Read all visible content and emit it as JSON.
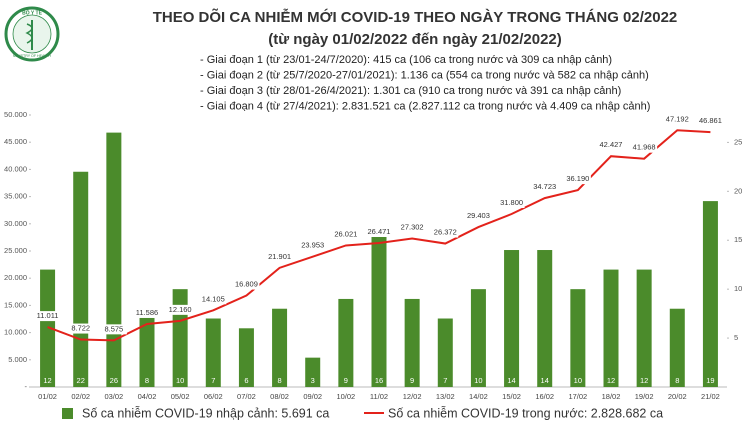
{
  "logo": {
    "name": "BỘ Y TẾ",
    "subtitle": "MINISTRY OF HEALTH"
  },
  "chart_data": {
    "type": "bar",
    "title": "THEO DÕI CA NHIỄM MỚI COVID-19 THEO NGÀY TRONG THÁNG 02/2022",
    "subtitle": "(từ ngày 01/02/2022 đến ngày 21/02/2022)",
    "notes": [
      "- Giai đoạn 1 (từ 23/01-24/7/2020): 415 ca (106 ca trong nước và 309 ca nhập cảnh)",
      "- Giai đoạn 2 (từ 25/7/2020-27/01/2021): 1.136 ca (554 ca trong nước và 582 ca nhập cảnh)",
      "- Giai đoạn 3 (từ 28/01-26/4/2021): 1.301 ca (910 ca trong nước và 391 ca nhập cảnh)",
      "- Giai đoạn 4 (từ 27/4/2021): 2.831.521 ca (2.827.112 ca trong nước và 4.409 ca nhập cảnh)"
    ],
    "categories": [
      "01/02",
      "02/02",
      "03/02",
      "04/02",
      "05/02",
      "06/02",
      "07/02",
      "08/02",
      "09/02",
      "10/02",
      "11/02",
      "12/02",
      "13/02",
      "14/02",
      "15/02",
      "16/02",
      "17/02",
      "18/02",
      "19/02",
      "20/02",
      "21/02"
    ],
    "series": [
      {
        "name": "Số ca nhiễm COVID-19 nhập cảnh: 5.691 ca",
        "type": "bar",
        "axis": "y2",
        "color": "#4b8b2b",
        "values": [
          12,
          22,
          26,
          8,
          10,
          7,
          6,
          8,
          3,
          9,
          16,
          9,
          7,
          10,
          14,
          14,
          10,
          12,
          12,
          8,
          19
        ]
      },
      {
        "name": "Số ca nhiễm COVID-19 trong nước: 2.828.682 ca",
        "type": "line",
        "color": "#e3221b",
        "values": [
          11011,
          8722,
          8575,
          11586,
          12160,
          14105,
          16809,
          21901,
          23953,
          26021,
          26471,
          27302,
          26372,
          29403,
          31800,
          34723,
          36190,
          42427,
          41968,
          47192,
          46861
        ],
        "value_labels": [
          "11.011",
          "8.722",
          "8.575",
          "11.586",
          "12.160",
          "14.105",
          "16.809",
          "21.901",
          "23.953",
          "26.021",
          "26.471",
          "27.302",
          "26.372",
          "29.403",
          "31.800",
          "34.723",
          "36.190",
          "42.427",
          "41.968",
          "47.192",
          "46.861"
        ]
      }
    ],
    "ylim": [
      0,
      50000
    ],
    "yticks": [
      {
        "value": 0,
        "label": "-"
      },
      {
        "value": 5000,
        "label": "5.000"
      },
      {
        "value": 10000,
        "label": "10.000"
      },
      {
        "value": 15000,
        "label": "15.000"
      },
      {
        "value": 20000,
        "label": "20.000"
      },
      {
        "value": 25000,
        "label": "25.000"
      },
      {
        "value": 30000,
        "label": "30.000"
      },
      {
        "value": 35000,
        "label": "35.000"
      },
      {
        "value": 40000,
        "label": "40.000"
      },
      {
        "value": 45000,
        "label": "45.000"
      },
      {
        "value": 50000,
        "label": "50.000"
      }
    ],
    "y2lim": [
      0,
      27.8
    ],
    "y2ticks": [
      5,
      10,
      15,
      20,
      25
    ],
    "grid": false
  }
}
